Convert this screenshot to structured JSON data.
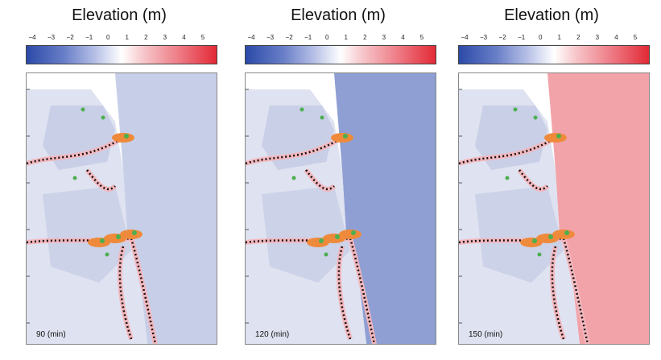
{
  "panels": [
    {
      "title": "Elevation (m)",
      "time_label": "90 (min)",
      "sea_color": "#c7cfe8"
    },
    {
      "title": "Elevation (m)",
      "time_label": "120 (min)",
      "sea_color": "#8f9fd3"
    },
    {
      "title": "Elevation (m)",
      "time_label": "150 (min)",
      "sea_color": "#f2a3aa"
    }
  ],
  "colorbar": {
    "ticks": [
      "−4",
      "−3",
      "−2",
      "−1",
      "0",
      "1",
      "2",
      "3",
      "4",
      "5"
    ],
    "colors": [
      "#2b4aa8",
      "#ffffff",
      "#e22a36"
    ]
  }
}
